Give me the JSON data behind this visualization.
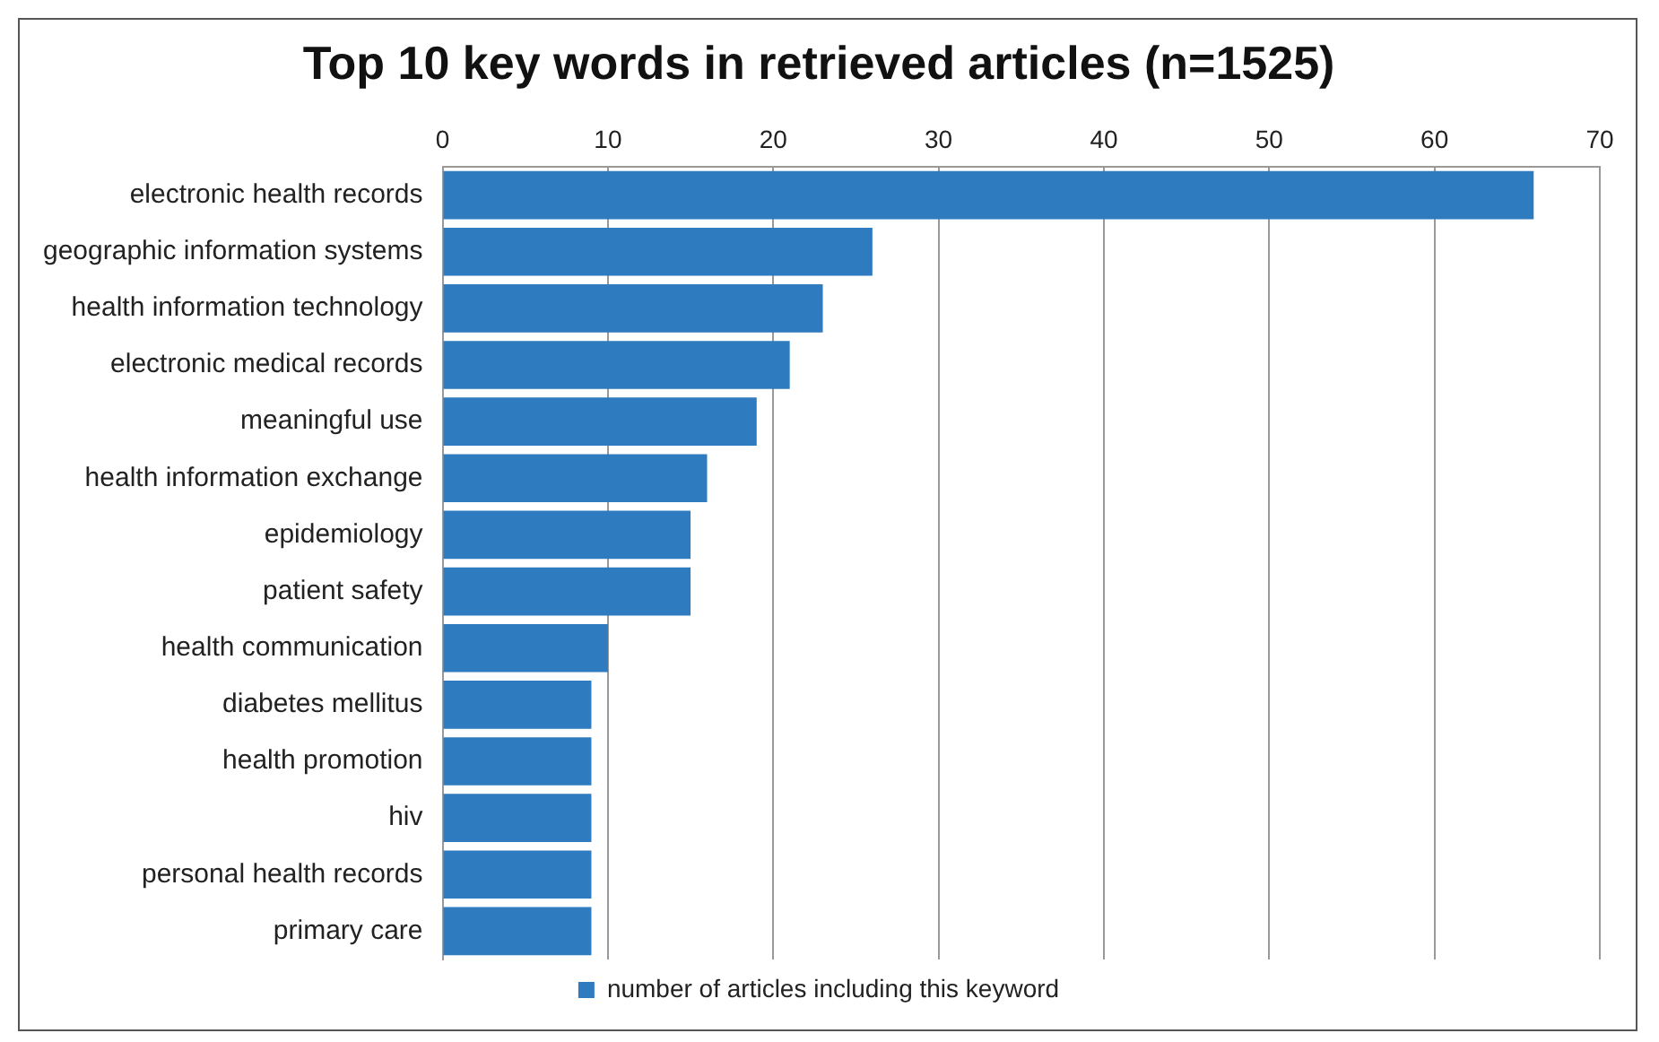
{
  "chart_data": {
    "type": "bar",
    "orientation": "horizontal",
    "title": "Top 10 key words in retrieved articles (n=1525)",
    "categories": [
      "electronic health records",
      "geographic information systems",
      "health information technology",
      "electronic medical records",
      "meaningful use",
      "health information exchange",
      "epidemiology",
      "patient safety",
      "health communication",
      "diabetes mellitus",
      "health promotion",
      "hiv",
      "personal health records",
      "primary care"
    ],
    "series": [
      {
        "name": "number of articles including this keyword",
        "color": "#2e7bbf",
        "values": [
          66,
          26,
          23,
          21,
          19,
          16,
          15,
          15,
          10,
          9,
          9,
          9,
          9,
          9
        ]
      }
    ],
    "xlim": [
      0,
      70
    ],
    "xticks": [
      0,
      10,
      20,
      30,
      40,
      50,
      60,
      70
    ],
    "grid": "x",
    "legend": "bottom"
  }
}
